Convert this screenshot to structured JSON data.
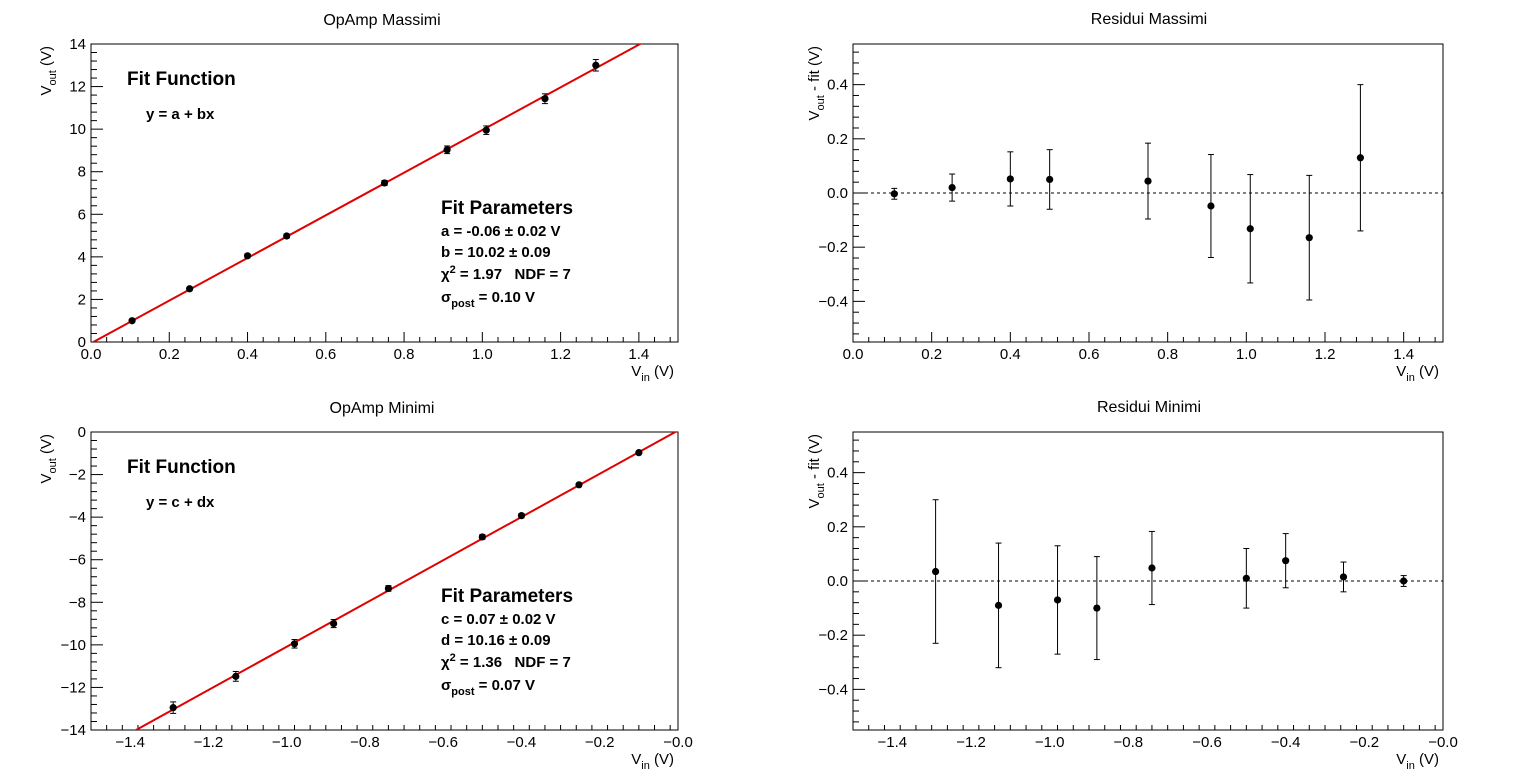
{
  "colors": {
    "fit_line": "#e00000",
    "points": "#000000",
    "axes": "#000000"
  },
  "chart_data": [
    {
      "type": "scatter",
      "title": "OpAmp Massimi",
      "xlabel": "V_in (V)",
      "ylabel": "V_out (V)",
      "xlim": [
        0,
        1.5
      ],
      "ylim": [
        0,
        14
      ],
      "xticks": [
        0,
        0.2,
        0.4,
        0.6,
        0.8,
        1.0,
        1.2,
        1.4
      ],
      "xtick_labels": [
        "0.0",
        "0.2",
        "0.4",
        "0.6",
        "0.8",
        "1.0",
        "1.2",
        "1.4"
      ],
      "yticks": [
        0,
        2,
        4,
        6,
        8,
        10,
        12,
        14
      ],
      "ytick_labels": [
        "0",
        "2",
        "4",
        "6",
        "8",
        "10",
        "12",
        "14"
      ],
      "series": [
        {
          "x": [
            0.105,
            0.252,
            0.4,
            0.5,
            0.75,
            0.91,
            1.01,
            1.16,
            1.29
          ],
          "y": [
            1.0,
            2.5,
            4.05,
            4.98,
            7.47,
            9.03,
            9.95,
            11.43,
            13.0
          ],
          "yerr": [
            0.06,
            0.08,
            0.09,
            0.1,
            0.12,
            0.18,
            0.2,
            0.23,
            0.27
          ]
        }
      ],
      "fit": {
        "intercept": -0.06,
        "slope": 10.02
      },
      "fit_function": {
        "title": "Fit Function",
        "formula": "y = a + bx"
      },
      "fit_parameters": {
        "title": "Fit Parameters",
        "line1": "a = -0.06 ± 0.02 V",
        "line2": "b = 10.02 ± 0.09",
        "chi2": "χ² = 1.97   NDF = 7",
        "sigma": "σ_post = 0.10 V"
      }
    },
    {
      "type": "scatter",
      "title": "Residui Massimi",
      "xlabel": "V_in (V)",
      "ylabel": "V_out - fit (V)",
      "xlim": [
        0,
        1.5
      ],
      "ylim": [
        -0.55,
        0.55
      ],
      "xticks": [
        0,
        0.2,
        0.4,
        0.6,
        0.8,
        1.0,
        1.2,
        1.4
      ],
      "xtick_labels": [
        "0.0",
        "0.2",
        "0.4",
        "0.6",
        "0.8",
        "1.0",
        "1.2",
        "1.4"
      ],
      "yticks": [
        -0.4,
        -0.2,
        0,
        0.2,
        0.4
      ],
      "ytick_labels": [
        "−0.4",
        "−0.2",
        "0.0",
        "0.2",
        "0.4"
      ],
      "series": [
        {
          "x": [
            0.105,
            0.252,
            0.4,
            0.5,
            0.75,
            0.91,
            1.01,
            1.16,
            1.29
          ],
          "y": [
            -0.003,
            0.02,
            0.052,
            0.05,
            0.044,
            -0.048,
            -0.132,
            -0.165,
            0.13
          ],
          "yerr": [
            0.02,
            0.05,
            0.1,
            0.11,
            0.14,
            0.19,
            0.2,
            0.23,
            0.27
          ]
        }
      ],
      "reference_line": 0
    },
    {
      "type": "scatter",
      "title": "OpAmp Minimi",
      "xlabel": "V_in (V)",
      "ylabel": "V_out (V)",
      "xlim": [
        -1.5,
        0
      ],
      "ylim": [
        -14,
        0
      ],
      "xticks": [
        -1.4,
        -1.2,
        -1.0,
        -0.8,
        -0.6,
        -0.4,
        -0.2,
        0
      ],
      "xtick_labels": [
        "−1.4",
        "−1.2",
        "−1.0",
        "−0.8",
        "−0.6",
        "−0.4",
        "−0.2",
        "−0.0"
      ],
      "yticks": [
        -14,
        -12,
        -10,
        -8,
        -6,
        -4,
        -2,
        0
      ],
      "ytick_labels": [
        "−14",
        "−12",
        "−10",
        "−8",
        "−6",
        "−4",
        "−2",
        "0"
      ],
      "series": [
        {
          "x": [
            -1.29,
            -1.13,
            -0.98,
            -0.88,
            -0.74,
            -0.5,
            -0.4,
            -0.253,
            -0.1
          ],
          "y": [
            -12.95,
            -11.48,
            -9.95,
            -9.0,
            -7.35,
            -4.93,
            -3.93,
            -2.48,
            -0.97
          ],
          "yerr": [
            0.27,
            0.23,
            0.2,
            0.19,
            0.13,
            0.11,
            0.1,
            0.06,
            0.02
          ]
        }
      ],
      "fit": {
        "intercept": 0.07,
        "slope": 10.16
      },
      "fit_function": {
        "title": "Fit Function",
        "formula": "y = c + dx"
      },
      "fit_parameters": {
        "title": "Fit Parameters",
        "line1": "c = 0.07 ± 0.02 V",
        "line2": "d = 10.16 ± 0.09",
        "chi2": "χ² = 1.36   NDF = 7",
        "sigma": "σ_post = 0.07 V"
      }
    },
    {
      "type": "scatter",
      "title": "Residui Minimi",
      "xlabel": "V_in (V)",
      "ylabel": "V_out - fit (V)",
      "xlim": [
        -1.5,
        0
      ],
      "ylim": [
        -0.55,
        0.55
      ],
      "xticks": [
        -1.4,
        -1.2,
        -1.0,
        -0.8,
        -0.6,
        -0.4,
        -0.2,
        0
      ],
      "xtick_labels": [
        "−1.4",
        "−1.2",
        "−1.0",
        "−0.8",
        "−0.6",
        "−0.4",
        "−0.2",
        "−0.0"
      ],
      "yticks": [
        -0.4,
        -0.2,
        0,
        0.2,
        0.4
      ],
      "ytick_labels": [
        "−0.4",
        "−0.2",
        "0.0",
        "0.2",
        "0.4"
      ],
      "series": [
        {
          "x": [
            -1.29,
            -1.13,
            -0.98,
            -0.88,
            -0.74,
            -0.5,
            -0.4,
            -0.253,
            -0.1
          ],
          "y": [
            0.035,
            -0.09,
            -0.07,
            -0.1,
            0.048,
            0.01,
            0.075,
            0.015,
            0.0
          ],
          "yerr": [
            0.265,
            0.23,
            0.2,
            0.19,
            0.135,
            0.11,
            0.1,
            0.055,
            0.02
          ]
        }
      ],
      "reference_line": 0
    }
  ]
}
